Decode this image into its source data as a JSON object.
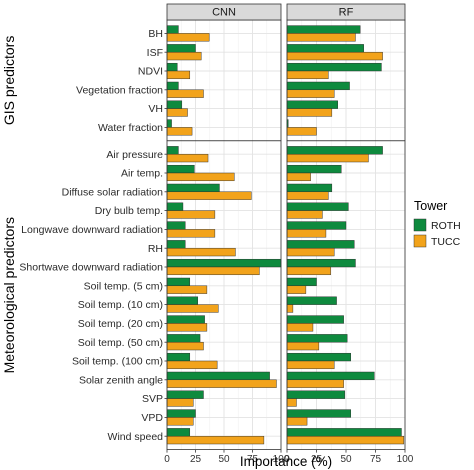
{
  "chart_data": {
    "type": "bar",
    "orientation": "horizontal",
    "xlabel": "Importance (%)",
    "xlim": [
      0,
      100
    ],
    "x_ticks": [
      "0",
      "25",
      "50",
      "75",
      "100"
    ],
    "grid": true,
    "legend_position": "right",
    "legend_title": "Tower",
    "facets": [
      "CNN",
      "RF"
    ],
    "series": [
      {
        "name": "ROTH",
        "color": "#0e8a3e"
      },
      {
        "name": "TUCC",
        "color": "#f2a31b"
      }
    ],
    "groups": [
      {
        "label": "GIS predictors",
        "categories": [
          "BH",
          "ISF",
          "NDVI",
          "Vegetation fraction",
          "VH",
          "Water fraction"
        ],
        "values": {
          "CNN": {
            "ROTH": [
              10,
              25,
              9,
              10,
              13,
              4
            ],
            "TUCC": [
              37,
              30,
              20,
              32,
              18,
              22
            ]
          },
          "RF": {
            "ROTH": [
              62,
              65,
              80,
              53,
              43,
              1
            ],
            "TUCC": [
              58,
              81,
              35,
              40,
              38,
              25
            ]
          }
        }
      },
      {
        "label": "Meteorological predictors",
        "categories": [
          "Air pressure",
          "Air temp.",
          "Diffuse solar radiation",
          "Dry bulb temp.",
          "Longwave downward radiation",
          "RH",
          "Shortwave downward radiation",
          "Soil temp. (5 cm)",
          "Soil temp. (10 cm)",
          "Soil temp. (20 cm)",
          "Soil temp. (50 cm)",
          "Soil temp. (100 cm)",
          "Solar zenith angle",
          "SVP",
          "VPD",
          "Wind speed"
        ],
        "values": {
          "CNN": {
            "ROTH": [
              10,
              24,
              46,
              14,
              16,
              16,
              100,
              20,
              27,
              33,
              29,
              20,
              90,
              32,
              25,
              20
            ],
            "TUCC": [
              36,
              59,
              74,
              42,
              42,
              60,
              81,
              35,
              45,
              35,
              32,
              44,
              96,
              23,
              23,
              85
            ]
          },
          "RF": {
            "ROTH": [
              81,
              46,
              38,
              52,
              50,
              57,
              58,
              25,
              42,
              48,
              51,
              54,
              74,
              49,
              54,
              97
            ],
            "TUCC": [
              69,
              20,
              35,
              30,
              33,
              40,
              37,
              16,
              5,
              22,
              27,
              40,
              48,
              8,
              17,
              99
            ]
          }
        }
      }
    ]
  }
}
